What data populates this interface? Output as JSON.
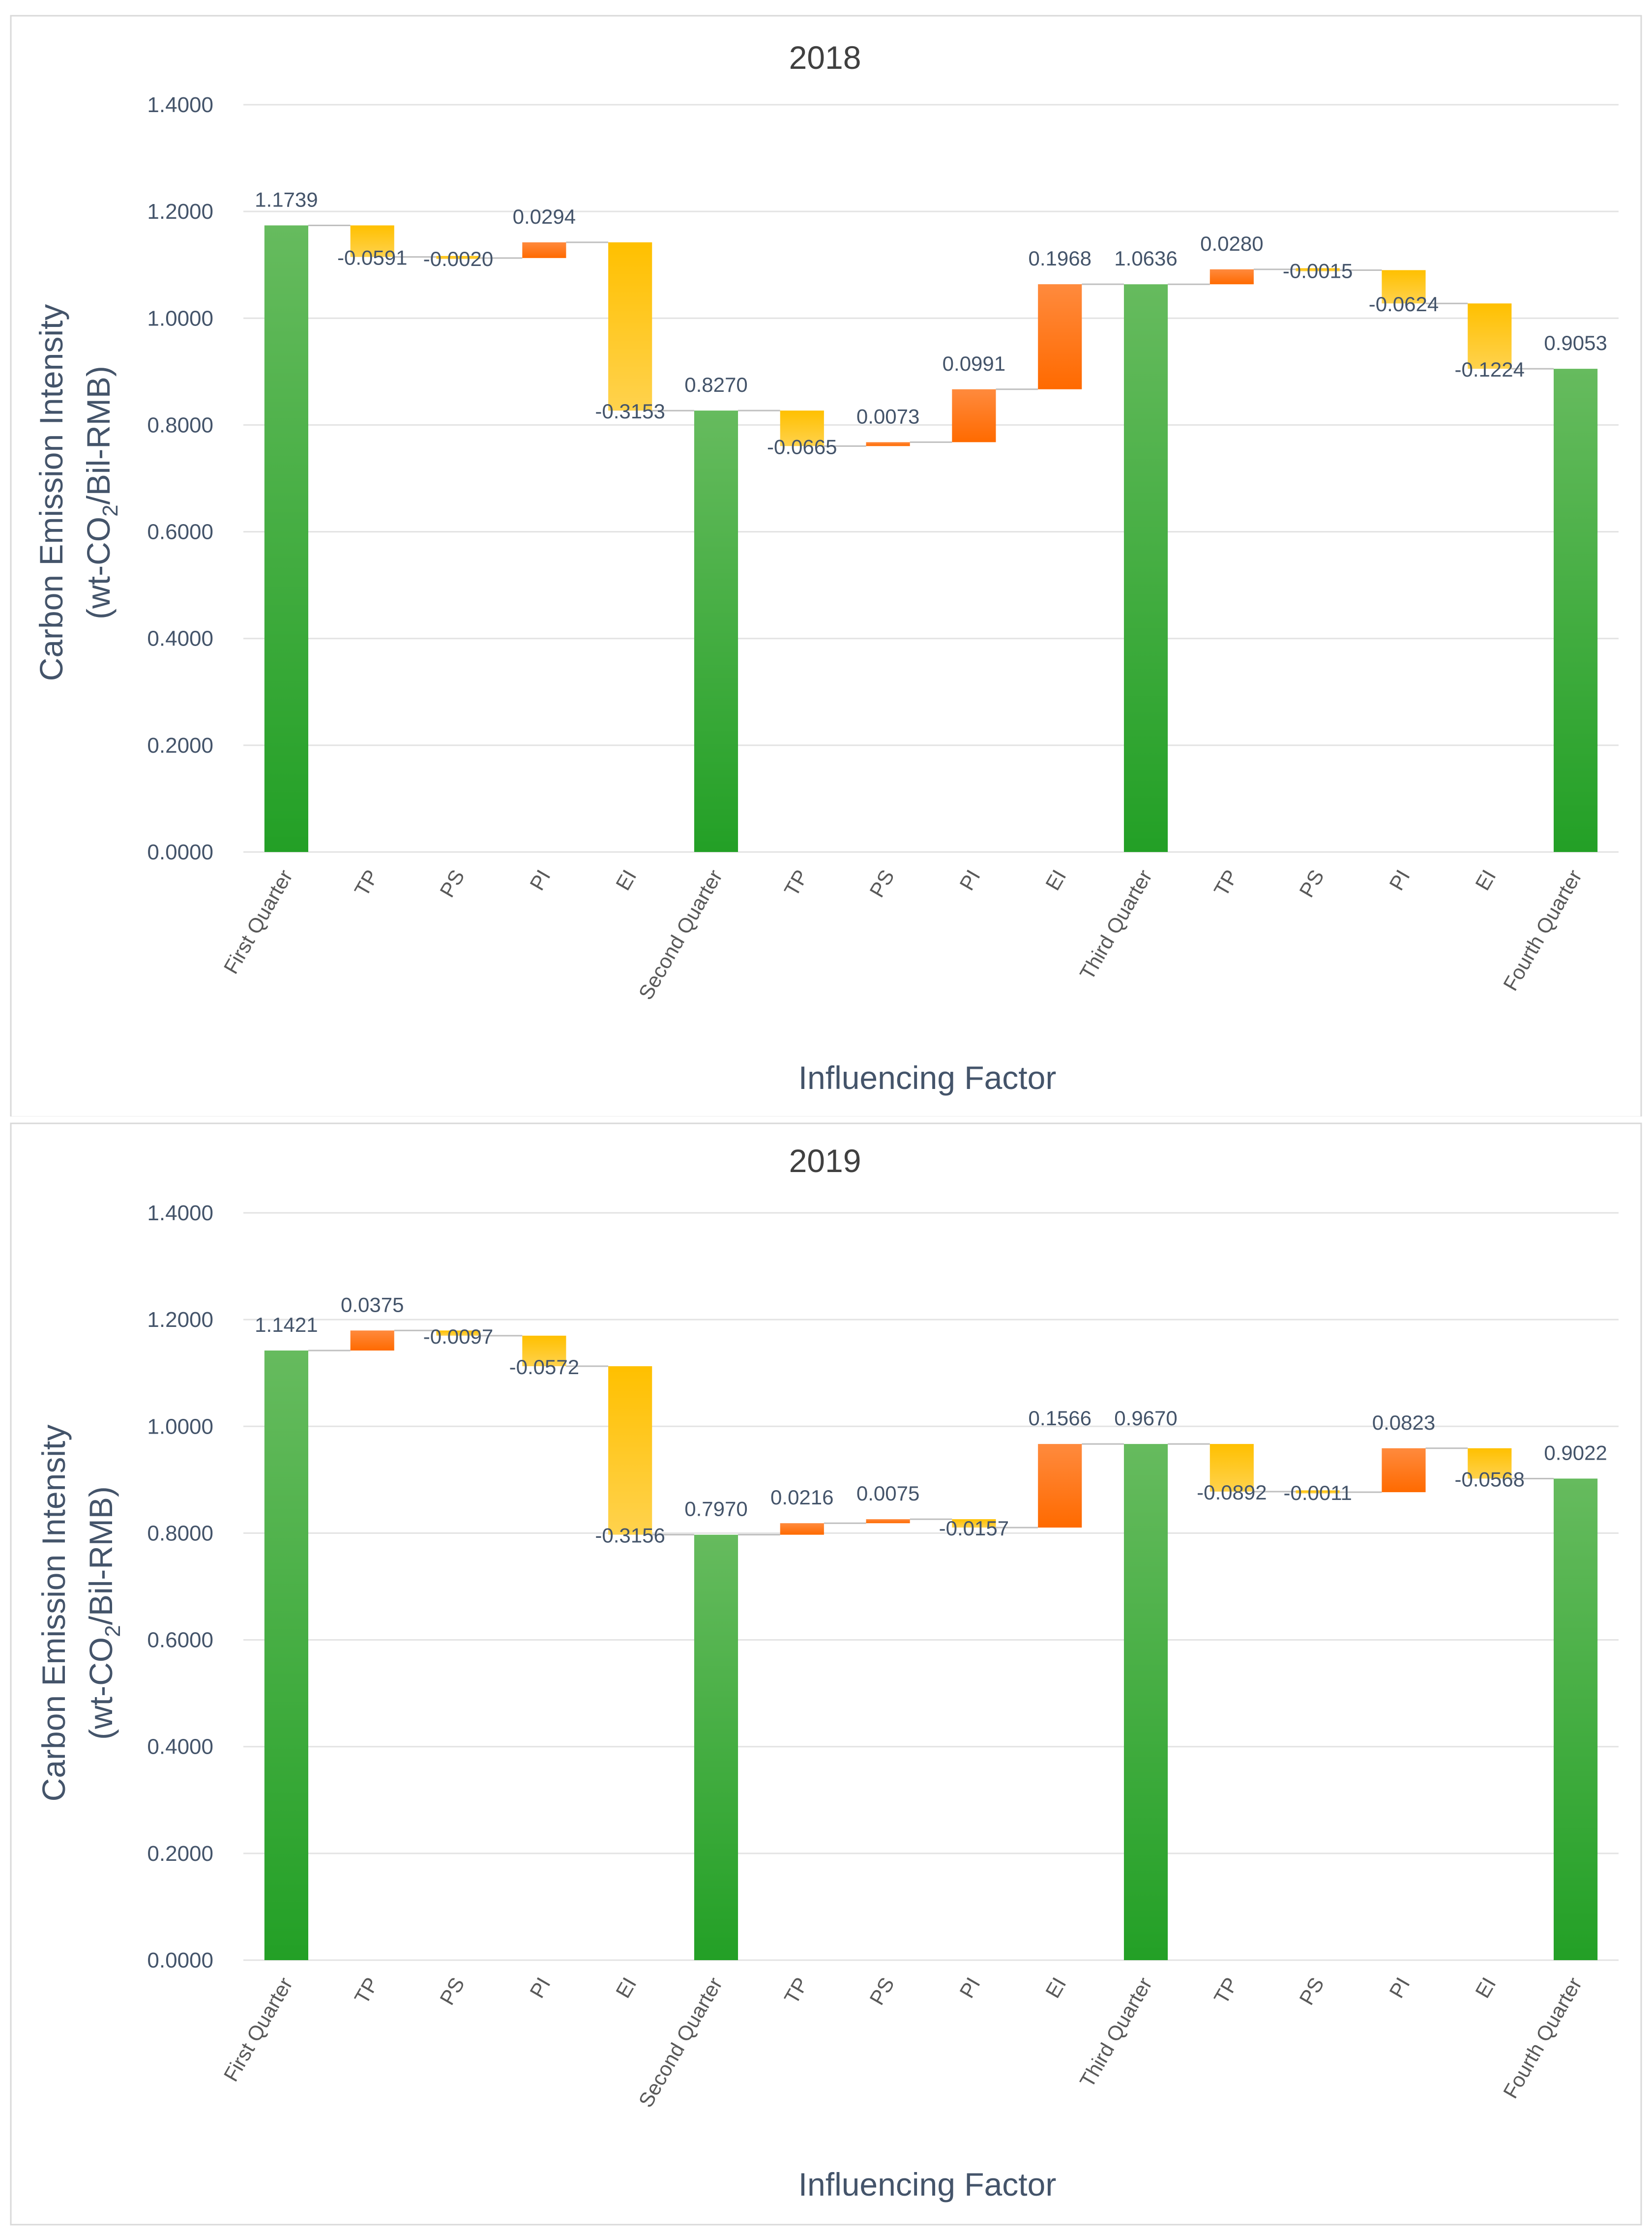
{
  "colors": {
    "total_top": "#66bb5e",
    "total_bottom": "#23a026",
    "increase_top": "#ff8a3d",
    "increase_bottom": "#ff6a00",
    "decrease_top": "#ffc000",
    "decrease_bottom": "#ffd24d",
    "gridline": "#e3e3e3",
    "connector": "#bfbfbf",
    "frame": "#d9d9d9"
  },
  "chart_data": [
    {
      "type": "waterfall",
      "title": "2018",
      "xlabel": "Influencing Factor",
      "ylabel_line1": "Carbon Emission Intensity",
      "ylabel_line2_prefix": "(wt-CO",
      "ylabel_line2_sub": "2",
      "ylabel_line2_suffix": "/Bil-RMB)",
      "ylim": [
        0,
        1.4
      ],
      "yticks": [
        "0.0000",
        "0.2000",
        "0.4000",
        "0.6000",
        "0.8000",
        "1.0000",
        "1.2000",
        "1.4000"
      ],
      "categories": [
        "First Quarter",
        "TP",
        "PS",
        "PI",
        "EI",
        "Second Quarter",
        "TP",
        "PS",
        "PI",
        "EI",
        "Third Quarter",
        "TP",
        "PS",
        "PI",
        "EI",
        "Fourth Quarter"
      ],
      "kinds": [
        "total",
        "delta",
        "delta",
        "delta",
        "delta",
        "total",
        "delta",
        "delta",
        "delta",
        "delta",
        "total",
        "delta",
        "delta",
        "delta",
        "delta",
        "total"
      ],
      "values": [
        1.1739,
        -0.0591,
        -0.002,
        0.0294,
        -0.3153,
        0.827,
        -0.0665,
        0.0073,
        0.0991,
        0.1968,
        1.0636,
        0.028,
        -0.0015,
        -0.0624,
        -0.1224,
        0.9053
      ],
      "value_labels": [
        "1.1739",
        "-0.0591",
        "-0.0020",
        "0.0294",
        "-0.3153",
        "0.8270",
        "-0.0665",
        "0.0073",
        "0.0991",
        "0.1968",
        "1.0636",
        "0.0280",
        "-0.0015",
        "-0.0624",
        "-0.1224",
        "0.9053"
      ]
    },
    {
      "type": "waterfall",
      "title": "2019",
      "xlabel": "Influencing Factor",
      "ylabel_line1": "Carbon Emission Intensity",
      "ylabel_line2_prefix": "(wt-CO",
      "ylabel_line2_sub": "2",
      "ylabel_line2_suffix": "/Bil-RMB)",
      "ylim": [
        0,
        1.4
      ],
      "yticks": [
        "0.0000",
        "0.2000",
        "0.4000",
        "0.6000",
        "0.8000",
        "1.0000",
        "1.2000",
        "1.4000"
      ],
      "categories": [
        "First Quarter",
        "TP",
        "PS",
        "PI",
        "EI",
        "Second Quarter",
        "TP",
        "PS",
        "PI",
        "EI",
        "Third Quarter",
        "TP",
        "PS",
        "PI",
        "EI",
        "Fourth Quarter"
      ],
      "kinds": [
        "total",
        "delta",
        "delta",
        "delta",
        "delta",
        "total",
        "delta",
        "delta",
        "delta",
        "delta",
        "total",
        "delta",
        "delta",
        "delta",
        "delta",
        "total"
      ],
      "values": [
        1.1421,
        0.0375,
        -0.0097,
        -0.0572,
        -0.3156,
        0.797,
        0.0216,
        0.0075,
        -0.0157,
        0.1566,
        0.967,
        -0.0892,
        -0.0011,
        0.0823,
        -0.0568,
        0.9022
      ],
      "value_labels": [
        "1.1421",
        "0.0375",
        "-0.0097",
        "-0.0572",
        "-0.3156",
        "0.7970",
        "0.0216",
        "0.0075",
        "-0.0157",
        "0.1566",
        "0.9670",
        "-0.0892",
        "-0.0011",
        "0.0823",
        "-0.0568",
        "0.9022"
      ]
    }
  ]
}
